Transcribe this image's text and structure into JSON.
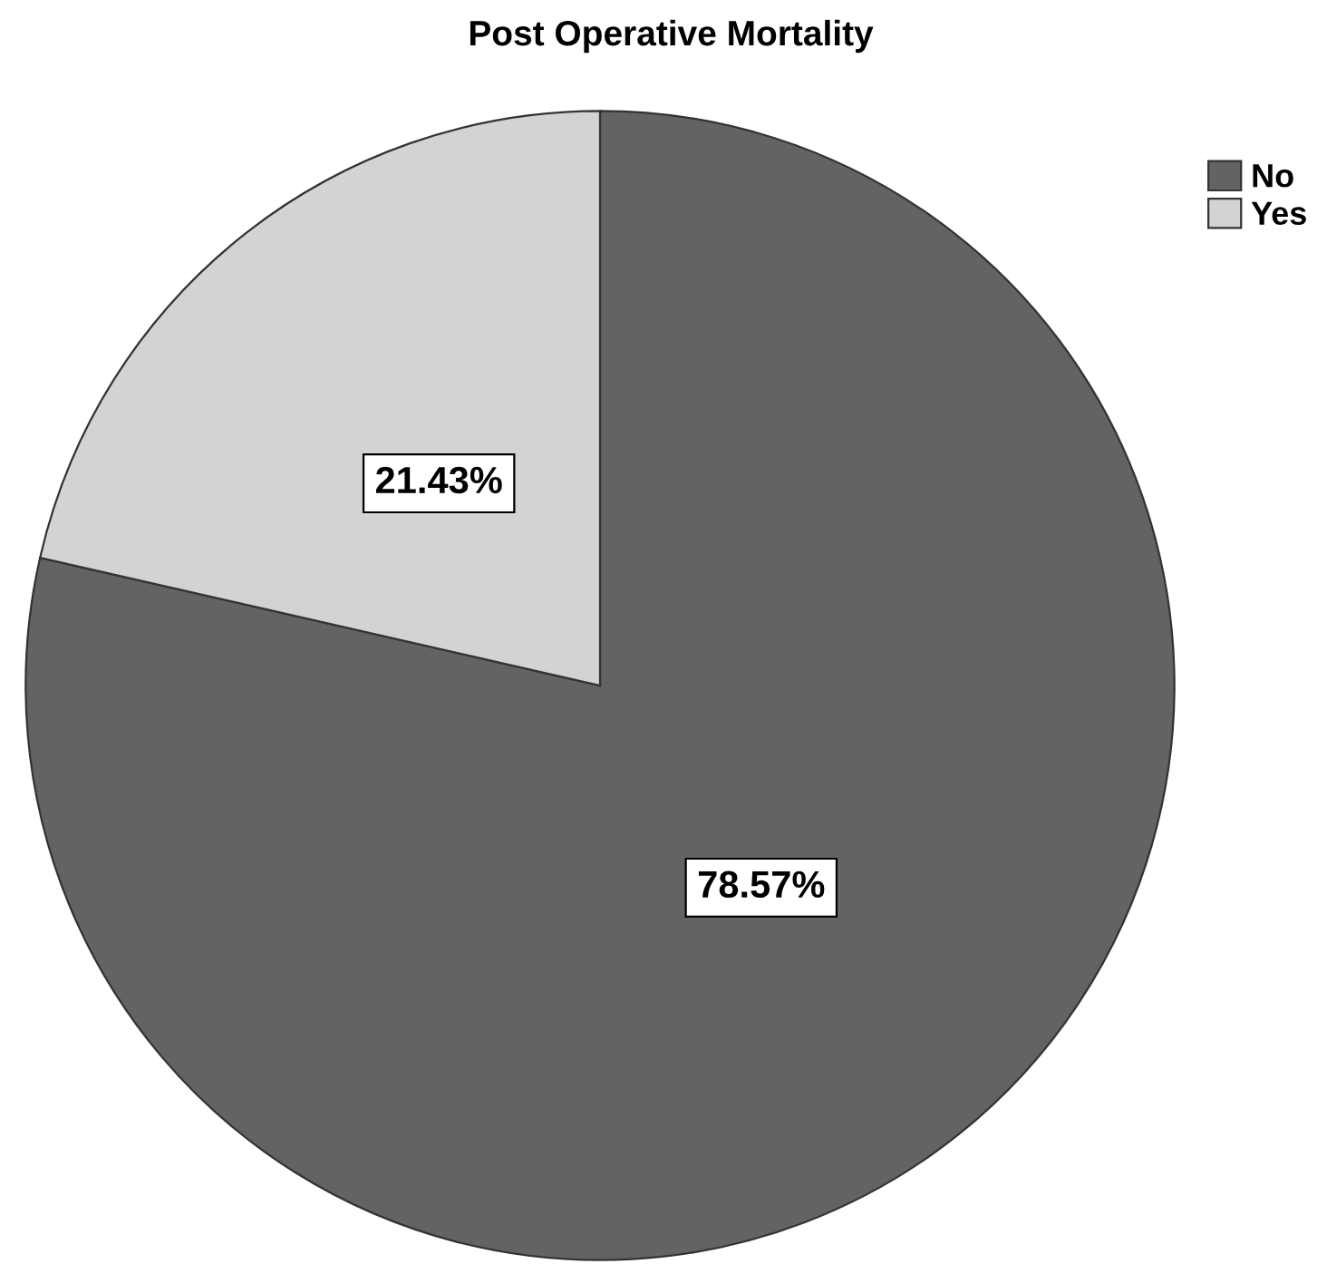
{
  "chart_data": {
    "type": "pie",
    "title": "Post Operative Mortality",
    "categories": [
      "No",
      "Yes"
    ],
    "values": [
      78.57,
      21.43
    ],
    "colors": [
      "#636363",
      "#d3d3d3"
    ],
    "value_labels": [
      "78.57%",
      "21.43%"
    ],
    "legend": "top right"
  }
}
